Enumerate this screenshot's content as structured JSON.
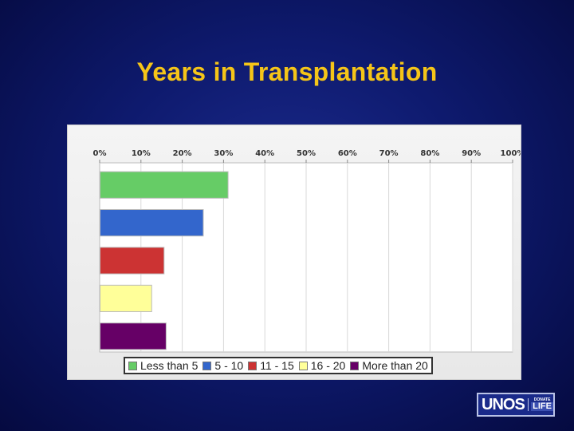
{
  "slide": {
    "title": "Years in Transplantation"
  },
  "chart_data": {
    "type": "bar",
    "orientation": "horizontal",
    "title": "Years in Transplantation",
    "xlabel": "",
    "ylabel": "",
    "xlim": [
      0,
      100
    ],
    "tick_labels": [
      "0%",
      "10%",
      "20%",
      "30%",
      "40%",
      "50%",
      "60%",
      "70%",
      "80%",
      "90%",
      "100%"
    ],
    "grid": true,
    "legend_position": "bottom",
    "categories": [
      "Less than 5",
      "5 - 10",
      "11 - 15",
      "16 - 20",
      "More than 20"
    ],
    "values": [
      31,
      25,
      15.5,
      12.5,
      16
    ],
    "colors": [
      "#66cc66",
      "#3366cc",
      "#cc3333",
      "#ffff99",
      "#660066"
    ]
  },
  "logo": {
    "main": "UNOS",
    "small": "DONATE",
    "big": "LIFE"
  }
}
